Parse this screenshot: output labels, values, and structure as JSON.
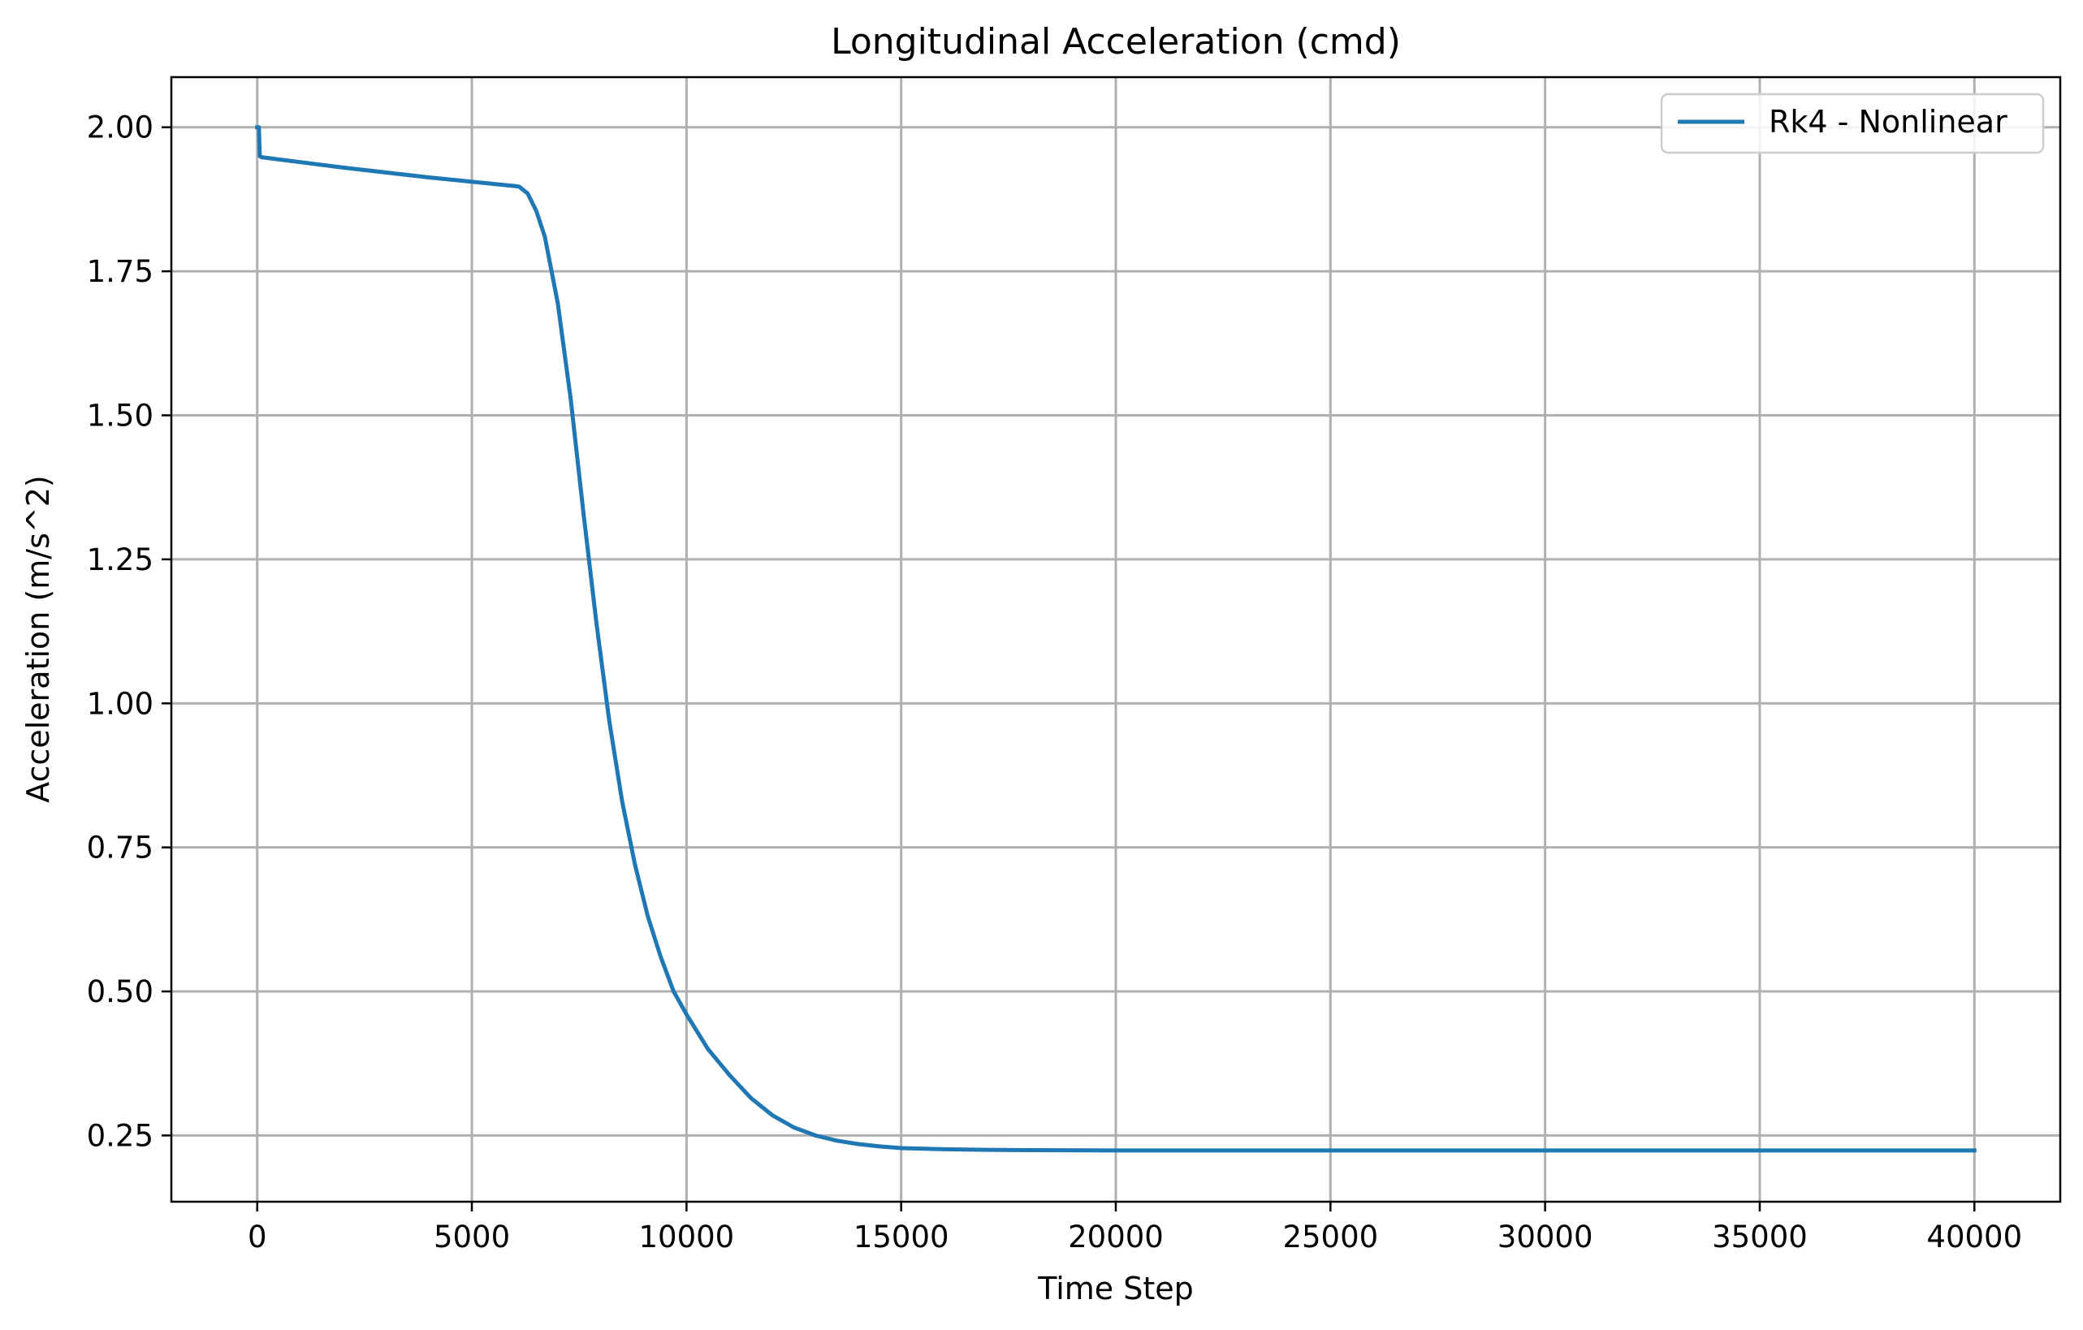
{
  "chart_data": {
    "type": "line",
    "title": "Longitudinal Acceleration (cmd)",
    "xlabel": "Time Step",
    "ylabel": "Acceleration (m/s^2)",
    "xlim": [
      -2000,
      42000
    ],
    "ylim": [
      0.135,
      2.087
    ],
    "xticks": [
      0,
      5000,
      10000,
      15000,
      20000,
      25000,
      30000,
      35000,
      40000
    ],
    "xtick_labels": [
      "0",
      "5000",
      "10000",
      "15000",
      "20000",
      "25000",
      "30000",
      "35000",
      "40000"
    ],
    "yticks": [
      0.25,
      0.5,
      0.75,
      1.0,
      1.25,
      1.5,
      1.75,
      2.0
    ],
    "ytick_labels": [
      "0.25",
      "0.50",
      "0.75",
      "1.00",
      "1.25",
      "1.50",
      "1.75",
      "2.00"
    ],
    "grid": true,
    "legend_position": "top-right",
    "series": [
      {
        "name": "Rk4 - Nonlinear",
        "color": "#1f77b4",
        "x": [
          0,
          40,
          60,
          100,
          2000,
          4000,
          6000,
          6100,
          6300,
          6500,
          6700,
          7000,
          7300,
          7600,
          7900,
          8200,
          8500,
          8800,
          9100,
          9400,
          9700,
          10000,
          10500,
          11000,
          11500,
          12000,
          12500,
          13000,
          13500,
          14000,
          14500,
          15000,
          16000,
          17000,
          18000,
          20000,
          25000,
          30000,
          35000,
          40000
        ],
        "y": [
          2.0,
          2.0,
          1.95,
          1.948,
          1.93,
          1.913,
          1.898,
          1.897,
          1.885,
          1.855,
          1.81,
          1.695,
          1.53,
          1.33,
          1.14,
          0.97,
          0.83,
          0.72,
          0.63,
          0.56,
          0.5,
          0.46,
          0.4,
          0.355,
          0.315,
          0.285,
          0.264,
          0.25,
          0.241,
          0.235,
          0.231,
          0.228,
          0.226,
          0.225,
          0.2245,
          0.224,
          0.224,
          0.224,
          0.224,
          0.224
        ]
      }
    ]
  }
}
